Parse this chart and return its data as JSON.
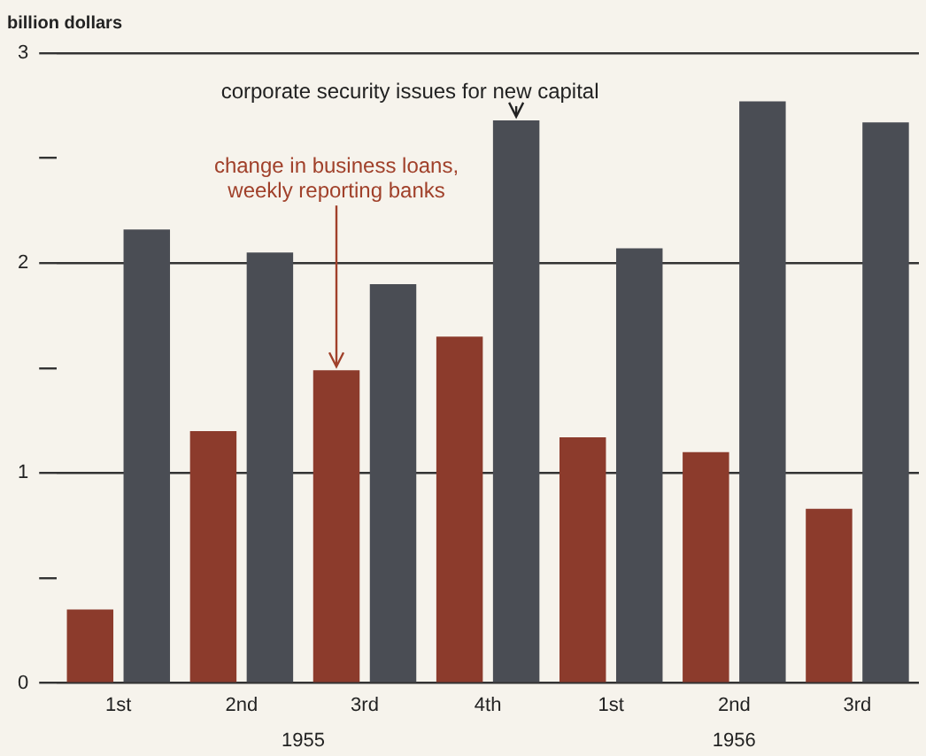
{
  "chart_data": {
    "type": "bar",
    "ylabel": "billion dollars",
    "categories": [
      "1st",
      "2nd",
      "3rd",
      "4th",
      "1st",
      "2nd",
      "3rd"
    ],
    "series": [
      {
        "name": "change in business loans, weekly reporting banks",
        "color": "#8c3b2c",
        "values": [
          0.35,
          1.2,
          1.49,
          1.65,
          1.17,
          1.1,
          0.83
        ]
      },
      {
        "name": "corporate security issues for new capital",
        "color": "#4a4d54",
        "values": [
          2.16,
          2.05,
          1.9,
          2.68,
          2.07,
          2.77,
          2.67
        ]
      }
    ],
    "ylim": [
      0,
      3
    ],
    "yticks": [
      0,
      {
        "value": 0.5,
        "label": null
      },
      1,
      {
        "value": 1.5,
        "label": null
      },
      2,
      {
        "value": 2.5,
        "label": null
      },
      3
    ],
    "grid": "y",
    "legend": false,
    "annotations": [
      "1955",
      "1956"
    ]
  }
}
